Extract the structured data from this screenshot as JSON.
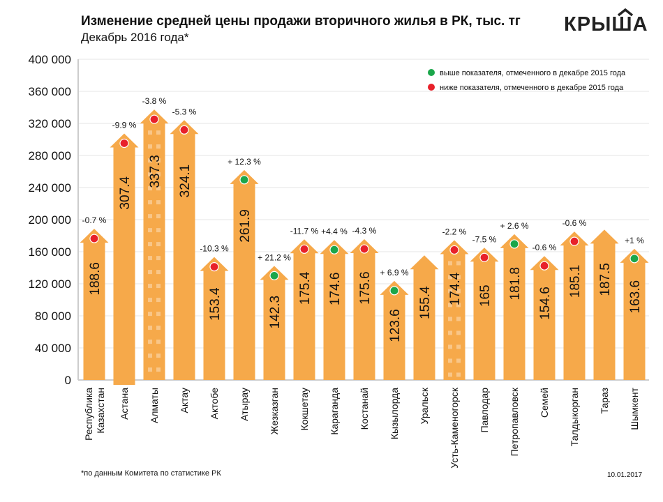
{
  "header": {
    "title": "Изменение средней цены продажи вторичного жилья в РК, тыс. тг",
    "subtitle": "Декабрь 2016 года*",
    "logo": "КРЫША"
  },
  "footer": {
    "note": "*по данным Комитета по статистике РК",
    "date": "10.01.2017"
  },
  "chart_data": {
    "type": "bar",
    "title": "Изменение средней цены продажи вторичного жилья в РК, тыс. тг",
    "ylim": [
      0,
      400000
    ],
    "yticks": [
      "0",
      "40 000",
      "80 000",
      "120 000",
      "160 000",
      "200 000",
      "240 000",
      "280 000",
      "320 000",
      "360 000",
      "400 000"
    ],
    "grid": true,
    "legend": {
      "placement": "top-right",
      "entries": [
        {
          "label": "выше показателя, отмеченного в декабре 2015 года",
          "color": "#1aa64a"
        },
        {
          "label": "ниже показателя, отмеченного в декабре 2015 года",
          "color": "#e8212a"
        }
      ]
    },
    "bar_color": "#f6a94a",
    "categories": [
      "Республика Казахстан",
      "Астана",
      "Алматы",
      "Актау",
      "Актобе",
      "Атырау",
      "Жезказган",
      "Кокшетау",
      "Караганда",
      "Костанай",
      "Кызылорда",
      "Уральск",
      "Усть-Каменогорск",
      "Павлодар",
      "Петропавловск",
      "Семей",
      "Талдыкорган",
      "Тараз",
      "Шымкент"
    ],
    "values": [
      188.6,
      307.4,
      337.3,
      324.1,
      153.4,
      261.9,
      142.3,
      175.4,
      174.6,
      175.6,
      123.6,
      155.4,
      174.4,
      165,
      181.8,
      154.6,
      185.1,
      187.5,
      163.6
    ],
    "value_labels": [
      "188.6",
      "307.4",
      "337.3",
      "324.1",
      "153.4",
      "261.9",
      "142.3",
      "175.4",
      "174.6",
      "175.6",
      "123.6",
      "155.4",
      "174.4",
      "165",
      "181.8",
      "154.6",
      "185.1",
      "187.5",
      "163.6"
    ],
    "change_labels": [
      "-0.7 %",
      "-9.9 %",
      "-3.8 %",
      "-5.3 %",
      "-10.3 %",
      "+ 12.3 %",
      "+ 21.2 %",
      "-11.7 %",
      "+4.4 %",
      "-4.3 %",
      "+ 6.9 %",
      "",
      "-2.2 %",
      "-7.5 %",
      "+ 2.6 %",
      "-0.6 %",
      "-0.6 %",
      "",
      "+1 %"
    ],
    "change_direction": [
      "down",
      "down",
      "down",
      "down",
      "down",
      "up",
      "up",
      "down",
      "up",
      "down",
      "up",
      "",
      "down",
      "down",
      "up",
      "down",
      "down",
      "",
      "up"
    ],
    "building_pattern": [
      false,
      false,
      true,
      false,
      false,
      false,
      false,
      false,
      false,
      false,
      false,
      false,
      true,
      false,
      false,
      false,
      false,
      false,
      false
    ]
  }
}
